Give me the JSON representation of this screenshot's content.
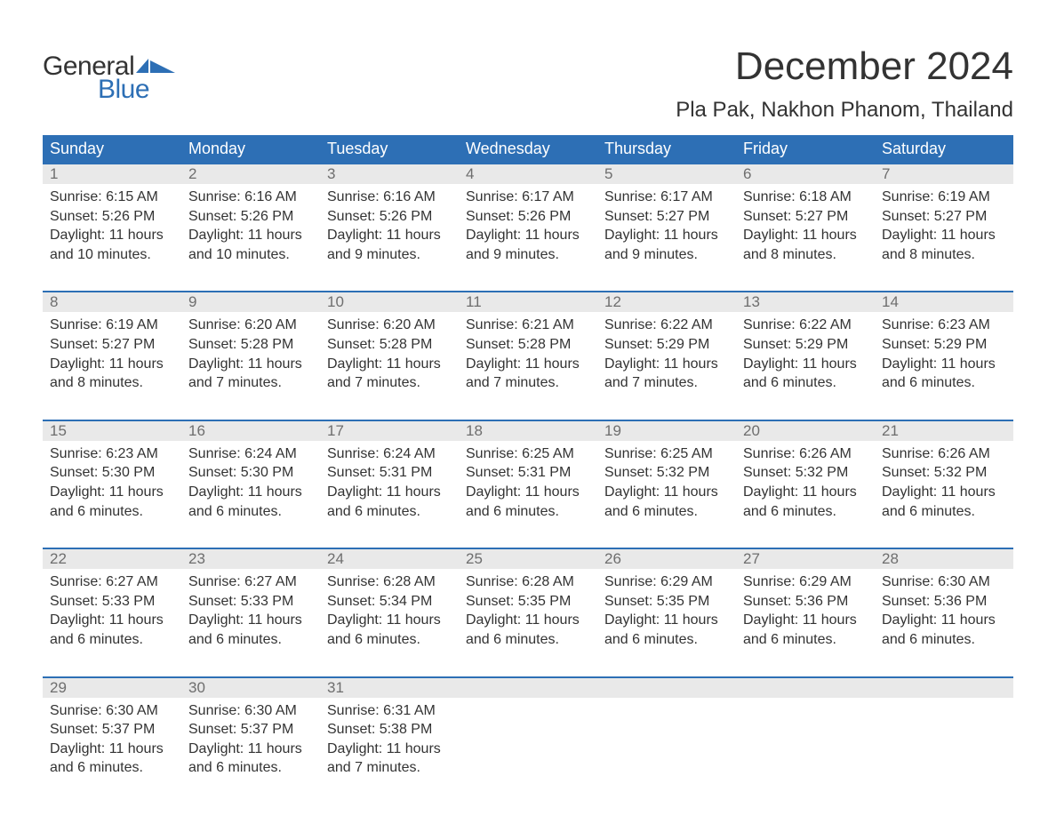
{
  "logo": {
    "word1": "General",
    "word2": "Blue",
    "flag_color": "#2d6fb5"
  },
  "title": "December 2024",
  "location": "Pla Pak, Nakhon Phanom, Thailand",
  "theme": {
    "header_bg": "#2d6fb5",
    "header_text": "#ffffff",
    "daynum_bg": "#e9e9e9",
    "daynum_text": "#6e6e6e",
    "body_text": "#333333",
    "separator": "#2d6fb5",
    "background": "#ffffff",
    "font_family": "Arial",
    "title_fontsize": 44,
    "location_fontsize": 24,
    "header_fontsize": 18,
    "cell_fontsize": 16
  },
  "day_names": [
    "Sunday",
    "Monday",
    "Tuesday",
    "Wednesday",
    "Thursday",
    "Friday",
    "Saturday"
  ],
  "labels": {
    "sunrise": "Sunrise:",
    "sunset": "Sunset:",
    "daylight": "Daylight:"
  },
  "weeks": [
    [
      {
        "day": 1,
        "sunrise": "6:15 AM",
        "sunset": "5:26 PM",
        "daylight": "11 hours and 10 minutes."
      },
      {
        "day": 2,
        "sunrise": "6:16 AM",
        "sunset": "5:26 PM",
        "daylight": "11 hours and 10 minutes."
      },
      {
        "day": 3,
        "sunrise": "6:16 AM",
        "sunset": "5:26 PM",
        "daylight": "11 hours and 9 minutes."
      },
      {
        "day": 4,
        "sunrise": "6:17 AM",
        "sunset": "5:26 PM",
        "daylight": "11 hours and 9 minutes."
      },
      {
        "day": 5,
        "sunrise": "6:17 AM",
        "sunset": "5:27 PM",
        "daylight": "11 hours and 9 minutes."
      },
      {
        "day": 6,
        "sunrise": "6:18 AM",
        "sunset": "5:27 PM",
        "daylight": "11 hours and 8 minutes."
      },
      {
        "day": 7,
        "sunrise": "6:19 AM",
        "sunset": "5:27 PM",
        "daylight": "11 hours and 8 minutes."
      }
    ],
    [
      {
        "day": 8,
        "sunrise": "6:19 AM",
        "sunset": "5:27 PM",
        "daylight": "11 hours and 8 minutes."
      },
      {
        "day": 9,
        "sunrise": "6:20 AM",
        "sunset": "5:28 PM",
        "daylight": "11 hours and 7 minutes."
      },
      {
        "day": 10,
        "sunrise": "6:20 AM",
        "sunset": "5:28 PM",
        "daylight": "11 hours and 7 minutes."
      },
      {
        "day": 11,
        "sunrise": "6:21 AM",
        "sunset": "5:28 PM",
        "daylight": "11 hours and 7 minutes."
      },
      {
        "day": 12,
        "sunrise": "6:22 AM",
        "sunset": "5:29 PM",
        "daylight": "11 hours and 7 minutes."
      },
      {
        "day": 13,
        "sunrise": "6:22 AM",
        "sunset": "5:29 PM",
        "daylight": "11 hours and 6 minutes."
      },
      {
        "day": 14,
        "sunrise": "6:23 AM",
        "sunset": "5:29 PM",
        "daylight": "11 hours and 6 minutes."
      }
    ],
    [
      {
        "day": 15,
        "sunrise": "6:23 AM",
        "sunset": "5:30 PM",
        "daylight": "11 hours and 6 minutes."
      },
      {
        "day": 16,
        "sunrise": "6:24 AM",
        "sunset": "5:30 PM",
        "daylight": "11 hours and 6 minutes."
      },
      {
        "day": 17,
        "sunrise": "6:24 AM",
        "sunset": "5:31 PM",
        "daylight": "11 hours and 6 minutes."
      },
      {
        "day": 18,
        "sunrise": "6:25 AM",
        "sunset": "5:31 PM",
        "daylight": "11 hours and 6 minutes."
      },
      {
        "day": 19,
        "sunrise": "6:25 AM",
        "sunset": "5:32 PM",
        "daylight": "11 hours and 6 minutes."
      },
      {
        "day": 20,
        "sunrise": "6:26 AM",
        "sunset": "5:32 PM",
        "daylight": "11 hours and 6 minutes."
      },
      {
        "day": 21,
        "sunrise": "6:26 AM",
        "sunset": "5:32 PM",
        "daylight": "11 hours and 6 minutes."
      }
    ],
    [
      {
        "day": 22,
        "sunrise": "6:27 AM",
        "sunset": "5:33 PM",
        "daylight": "11 hours and 6 minutes."
      },
      {
        "day": 23,
        "sunrise": "6:27 AM",
        "sunset": "5:33 PM",
        "daylight": "11 hours and 6 minutes."
      },
      {
        "day": 24,
        "sunrise": "6:28 AM",
        "sunset": "5:34 PM",
        "daylight": "11 hours and 6 minutes."
      },
      {
        "day": 25,
        "sunrise": "6:28 AM",
        "sunset": "5:35 PM",
        "daylight": "11 hours and 6 minutes."
      },
      {
        "day": 26,
        "sunrise": "6:29 AM",
        "sunset": "5:35 PM",
        "daylight": "11 hours and 6 minutes."
      },
      {
        "day": 27,
        "sunrise": "6:29 AM",
        "sunset": "5:36 PM",
        "daylight": "11 hours and 6 minutes."
      },
      {
        "day": 28,
        "sunrise": "6:30 AM",
        "sunset": "5:36 PM",
        "daylight": "11 hours and 6 minutes."
      }
    ],
    [
      {
        "day": 29,
        "sunrise": "6:30 AM",
        "sunset": "5:37 PM",
        "daylight": "11 hours and 6 minutes."
      },
      {
        "day": 30,
        "sunrise": "6:30 AM",
        "sunset": "5:37 PM",
        "daylight": "11 hours and 6 minutes."
      },
      {
        "day": 31,
        "sunrise": "6:31 AM",
        "sunset": "5:38 PM",
        "daylight": "11 hours and 7 minutes."
      },
      null,
      null,
      null,
      null
    ]
  ]
}
